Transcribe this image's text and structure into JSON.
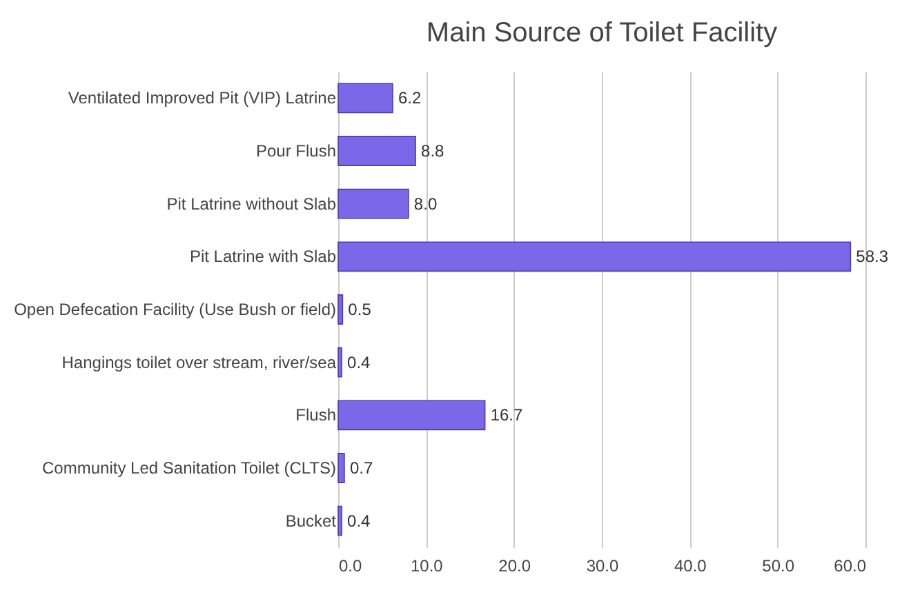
{
  "chart_data": {
    "type": "bar",
    "orientation": "horizontal",
    "title": "Main Source of Toilet Facility",
    "categories": [
      "Ventilated Improved Pit (VIP) Latrine",
      "Pour Flush",
      "Pit Latrine without Slab",
      "Pit Latrine with Slab",
      "Open Defecation Facility  (Use Bush or field)",
      "Hangings toilet over stream, river/sea",
      "Flush",
      "Community Led Sanitation Toilet (CLTS)",
      "Bucket"
    ],
    "values": [
      6.2,
      8.8,
      8.0,
      58.3,
      0.5,
      0.4,
      16.7,
      0.7,
      0.4
    ],
    "value_labels": [
      "6.2",
      "8.8",
      "8.0",
      "58.3",
      "0.5",
      "0.4",
      "16.7",
      "0.7",
      "0.4"
    ],
    "color": "#7b68e8",
    "xlim": [
      0,
      60
    ],
    "xticks": [
      {
        "value": 0,
        "label": "0.0"
      },
      {
        "value": 10,
        "label": "10.0"
      },
      {
        "value": 20,
        "label": "20.0"
      },
      {
        "value": 30,
        "label": "30.0"
      },
      {
        "value": 40,
        "label": "40.0"
      },
      {
        "value": 50,
        "label": "50.0"
      },
      {
        "value": 60,
        "label": "60.0"
      }
    ],
    "grid": "x"
  }
}
